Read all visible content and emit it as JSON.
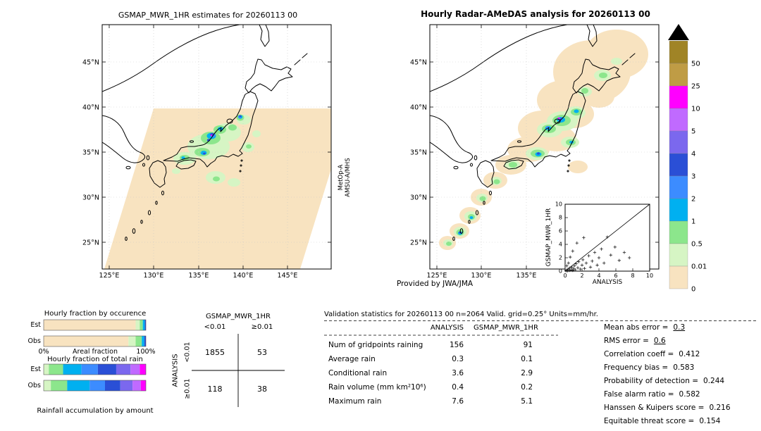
{
  "left_map": {
    "title": "GSMAP_MWR_1HR estimates for 20260113 00",
    "lat_labels": [
      "45°N",
      "40°N",
      "35°N",
      "30°N",
      "25°N"
    ],
    "lon_labels": [
      "125°E",
      "130°E",
      "135°E",
      "140°E",
      "145°E"
    ],
    "satellite_line1": "MetOp-A",
    "satellite_line2": "AMSU-A/MHS",
    "swath_color": "#f8e3c0"
  },
  "right_map": {
    "title": "Hourly Radar-AMeDAS analysis for 20260113 00",
    "lat_labels": [
      "45°N",
      "40°N",
      "35°N",
      "30°N",
      "25°N"
    ],
    "lon_labels": [
      "125°E",
      "130°E",
      "135°E"
    ],
    "credit": "Provided by JWA/JMA"
  },
  "colorbar": {
    "triangle_color": "#000000",
    "segments": [
      {
        "label": "50",
        "color": "#a08426"
      },
      {
        "label": "25",
        "color": "#bf9c45"
      },
      {
        "label": "10",
        "color": "#ff00ff"
      },
      {
        "label": "5",
        "color": "#c06aff"
      },
      {
        "label": "4",
        "color": "#7b68ee"
      },
      {
        "label": "3",
        "color": "#2a4fd6"
      },
      {
        "label": "2",
        "color": "#3c8cff"
      },
      {
        "label": "1",
        "color": "#00b0f0"
      },
      {
        "label": "0.5",
        "color": "#8ce68c"
      },
      {
        "label": "0.01",
        "color": "#d6f5c4"
      },
      {
        "label": "0",
        "color": "#f8e3c0"
      }
    ]
  },
  "chart_data": [
    {
      "id": "occurrence_fraction",
      "type": "bar",
      "stacked": true,
      "orientation": "horizontal",
      "title": "Hourly fraction by occurence",
      "xlabel": "Areal fraction",
      "xtick_labels": [
        "0%",
        "100%"
      ],
      "xlim": [
        0,
        100
      ],
      "categories": [
        "Est",
        "Obs"
      ],
      "est_pct": [
        90,
        4,
        3,
        2,
        1
      ],
      "obs_pct": [
        83,
        7,
        6,
        2.5,
        1.5
      ],
      "colors": [
        "#f8e3c0",
        "#d6f5c4",
        "#8ce68c",
        "#00b0f0",
        "#2a4fd6"
      ]
    },
    {
      "id": "total_rain_fraction",
      "type": "bar",
      "stacked": true,
      "orientation": "horizontal",
      "title": "Hourly fraction of total rain",
      "xlabel": "Rainfall accumulation by amount",
      "categories": [
        "Est",
        "Obs"
      ],
      "est_pct": [
        5,
        14,
        18,
        16,
        18,
        14,
        9,
        6
      ],
      "obs_pct": [
        7,
        16,
        22,
        15,
        15,
        12,
        8,
        5
      ],
      "colors": [
        "#d6f5c4",
        "#8ce68c",
        "#00b0f0",
        "#3c8cff",
        "#2a4fd6",
        "#7b68ee",
        "#c06aff",
        "#ff00ff"
      ]
    },
    {
      "id": "inset_scatter",
      "type": "scatter",
      "xlabel": "ANALYSIS",
      "ylabel": "GSMAP_MWR_1HR",
      "xlim": [
        0,
        10
      ],
      "ylim": [
        0,
        10
      ],
      "tick_labels": [
        "0",
        "2",
        "4",
        "6",
        "8",
        "10"
      ],
      "marker": "+",
      "diagonal_line": true,
      "points": [
        [
          0.1,
          0.05
        ],
        [
          0.2,
          0.15
        ],
        [
          0.3,
          0.05
        ],
        [
          0.35,
          0.3
        ],
        [
          0.5,
          0.1
        ],
        [
          0.55,
          0.45
        ],
        [
          0.7,
          0.2
        ],
        [
          0.8,
          0.6
        ],
        [
          0.9,
          0.1
        ],
        [
          1.0,
          0.35
        ],
        [
          1.1,
          0.8
        ],
        [
          1.2,
          0.2
        ],
        [
          1.3,
          1.1
        ],
        [
          1.5,
          0.5
        ],
        [
          1.6,
          1.4
        ],
        [
          1.8,
          0.3
        ],
        [
          2.0,
          0.9
        ],
        [
          2.1,
          1.7
        ],
        [
          2.3,
          0.4
        ],
        [
          2.5,
          1.2
        ],
        [
          2.8,
          2.3
        ],
        [
          3.0,
          0.6
        ],
        [
          3.2,
          1.5
        ],
        [
          3.5,
          2.8
        ],
        [
          3.8,
          0.9
        ],
        [
          4.0,
          2.0
        ],
        [
          4.3,
          3.3
        ],
        [
          4.6,
          1.2
        ],
        [
          5.0,
          5.1
        ],
        [
          5.4,
          2.4
        ],
        [
          5.9,
          3.6
        ],
        [
          6.4,
          1.6
        ],
        [
          7.0,
          2.8
        ],
        [
          7.6,
          2.0
        ],
        [
          0.4,
          1.2
        ],
        [
          0.6,
          2.1
        ],
        [
          0.9,
          3.0
        ],
        [
          1.4,
          4.2
        ],
        [
          2.2,
          5.0
        ],
        [
          0.2,
          0.8
        ]
      ]
    },
    {
      "id": "contingency_table",
      "type": "table",
      "col_group": "GSMAP_MWR_1HR",
      "row_group": "ANALYSIS",
      "col_labels": [
        "<0.01",
        "≥0.01"
      ],
      "row_labels": [
        "<0.01",
        "≥0.01"
      ],
      "values": [
        [
          1855,
          53
        ],
        [
          118,
          38
        ]
      ]
    },
    {
      "id": "validation_stats",
      "type": "table",
      "title": "Validation statistics for 20260113 00  n=2064 Valid. grid=0.25° Units=mm/hr.",
      "columns": [
        "ANALYSIS",
        "GSMAP_MWR_1HR"
      ],
      "rows": [
        [
          "Num of gridpoints raining",
          "156",
          "91"
        ],
        [
          "Average rain",
          "0.3",
          "0.1"
        ],
        [
          "Conditional rain",
          "3.6",
          "2.9"
        ],
        [
          "Rain volume (mm km²10⁶)",
          "0.4",
          "0.2"
        ],
        [
          "Maximum rain",
          "7.6",
          "5.1"
        ]
      ],
      "metrics": [
        {
          "label": "Mean abs error =",
          "value": "0.3"
        },
        {
          "label": "RMS error =",
          "value": "0.6"
        },
        {
          "label": "Correlation coeff =",
          "value": "0.412"
        },
        {
          "label": "Frequency bias =",
          "value": "0.583"
        },
        {
          "label": "Probability of detection =",
          "value": "0.244"
        },
        {
          "label": "False alarm ratio =",
          "value": "0.582"
        },
        {
          "label": "Hanssen & Kuipers score =",
          "value": "0.216"
        },
        {
          "label": "Equitable threat score =",
          "value": "0.154"
        }
      ]
    }
  ]
}
